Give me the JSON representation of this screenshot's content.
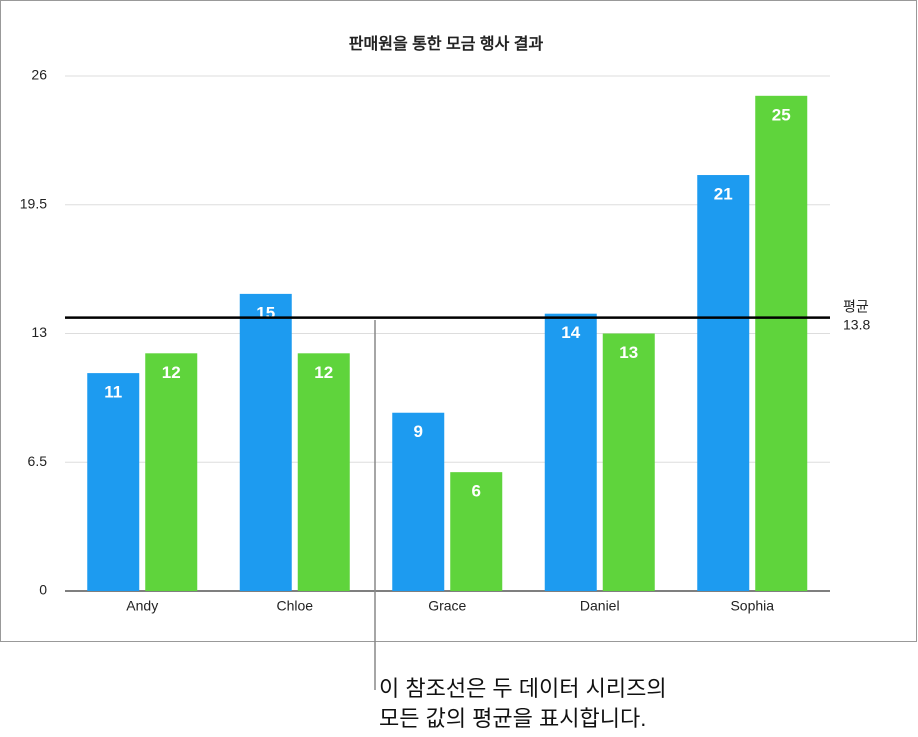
{
  "chart_data": {
    "type": "bar",
    "title": "판매원을 통한 모금 행사 결과",
    "categories": [
      "Andy",
      "Chloe",
      "Grace",
      "Daniel",
      "Sophia"
    ],
    "series": [
      {
        "color": "#1d9bf0",
        "values": [
          11,
          15,
          9,
          14,
          21
        ]
      },
      {
        "color": "#5fd43c",
        "values": [
          12,
          12,
          6,
          13,
          25
        ]
      }
    ],
    "ylim": [
      0,
      26
    ],
    "yticks": [
      0,
      6.5,
      13,
      19.5,
      26
    ],
    "grid": true,
    "reference_line": {
      "label": "평균",
      "value": 13.8,
      "color": "#000000"
    },
    "annotation": [
      "이 참조선은 두 데이터 시리즈의",
      "모든 값의 평균을 표시합니다."
    ]
  }
}
